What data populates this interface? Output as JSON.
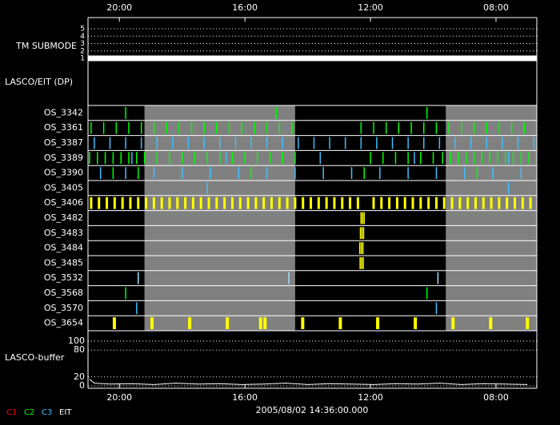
{
  "chart_data": {
    "type": "timeline",
    "xlim": [
      21,
      6.7
    ],
    "xticks": [
      {
        "value": 20,
        "label": "20:00"
      },
      {
        "value": 16,
        "label": "16:00"
      },
      {
        "value": 12,
        "label": "12:00"
      },
      {
        "value": 8,
        "label": "08:00"
      }
    ],
    "tm_submode": {
      "label": "TM SUBMODE",
      "ylim": [
        1,
        5
      ],
      "yticks": [
        1,
        2,
        3,
        4,
        5
      ],
      "x": [
        21,
        6.7
      ],
      "values": [
        1,
        1
      ],
      "color": "#ffffff"
    },
    "lasco_eit": {
      "label": "LASCO/EIT (DP)",
      "shaded": [
        [
          19.2,
          14.4
        ],
        [
          9.6,
          6.7
        ]
      ],
      "shade_color": "#808080",
      "rows": [
        {
          "label": "OS_3342",
          "series": [
            {
              "color": "#00ff00",
              "x": [
                19.8,
                15.0,
                10.2
              ]
            }
          ]
        },
        {
          "label": "OS_3361",
          "series": [
            {
              "color": "#00ff00",
              "x": [
                20.9,
                20.5,
                20.1,
                19.7,
                19.3,
                18.9,
                18.5,
                18.1,
                17.7,
                17.3,
                16.9,
                16.5,
                16.1,
                15.7,
                15.3,
                14.9,
                14.5,
                12.3,
                11.9,
                11.5,
                11.1,
                10.7,
                10.3,
                9.9,
                9.5,
                9.1,
                8.7,
                8.3,
                7.9,
                7.5,
                7.1
              ]
            }
          ]
        },
        {
          "label": "OS_3387",
          "series": [
            {
              "color": "#40c0ff",
              "x": [
                20.8,
                20.3,
                19.8,
                19.3,
                18.8,
                18.3,
                17.8,
                17.3,
                16.8,
                16.3,
                15.8,
                15.3,
                14.8,
                14.3,
                13.8,
                13.3,
                12.8,
                12.3,
                11.8,
                11.3,
                10.8,
                10.3,
                9.8,
                9.3,
                8.8,
                8.3,
                7.8,
                7.3,
                6.8
              ]
            }
          ]
        },
        {
          "label": "OS_3389",
          "series": [
            {
              "color": "#00ff00",
              "x": [
                20.95,
                20.7,
                20.45,
                20.2,
                19.95,
                19.7,
                19.45,
                19.2,
                18.8,
                18.4,
                18.0,
                17.6,
                17.2,
                16.8,
                16.4,
                16.0,
                15.6,
                15.2,
                14.8,
                14.4,
                12.0,
                11.6,
                11.2,
                10.8,
                10.4,
                10.0,
                9.7,
                9.45,
                9.2,
                8.95,
                8.7,
                8.45,
                8.2,
                7.95,
                7.7,
                7.45,
                7.2,
                6.95
              ]
            },
            {
              "color": "#40c0ff",
              "x": [
                19.6,
                16.6,
                13.6,
                10.6,
                7.6
              ]
            }
          ]
        },
        {
          "label": "OS_3390",
          "series": [
            {
              "color": "#40c0ff",
              "x": [
                20.6,
                19.8,
                18.9,
                18.0,
                17.1,
                16.2,
                15.3,
                14.4,
                13.5,
                12.6,
                11.7,
                10.8,
                9.9,
                9.0,
                8.1,
                7.2
              ]
            },
            {
              "color": "#00ff00",
              "x": [
                20.2,
                19.4,
                15.8,
                12.2,
                8.6
              ]
            }
          ]
        },
        {
          "label": "OS_3405",
          "series": [
            {
              "color": "#40c0ff",
              "x": [
                17.2,
                7.6
              ]
            }
          ]
        },
        {
          "label": "OS_3406",
          "series": [
            {
              "color": "#ffff00",
              "x": [
                20.9,
                20.65,
                20.4,
                20.15,
                19.9,
                19.65,
                19.4,
                19.15,
                18.9,
                18.65,
                18.4,
                18.15,
                17.9,
                17.65,
                17.4,
                17.15,
                16.9,
                16.65,
                16.4,
                16.15,
                15.9,
                15.65,
                15.4,
                15.15,
                14.9,
                14.65,
                14.4,
                14.15,
                13.9,
                13.65,
                13.4,
                13.15,
                12.9,
                12.65,
                12.4,
                11.9,
                11.65,
                11.4,
                11.15,
                10.9,
                10.65,
                10.4,
                10.15,
                9.9,
                9.65,
                9.4,
                9.15,
                8.9,
                8.65,
                8.4,
                8.15,
                7.9,
                7.65,
                7.4,
                7.15,
                6.9
              ]
            }
          ]
        },
        {
          "label": "OS_3482",
          "series": [
            {
              "color": "#ffff00",
              "x": [
                12.3,
                12.25,
                12.2
              ]
            }
          ]
        },
        {
          "label": "OS_3483",
          "series": [
            {
              "color": "#ffff00",
              "x": [
                12.32,
                12.27,
                12.22
              ]
            }
          ]
        },
        {
          "label": "OS_3484",
          "series": [
            {
              "color": "#ffff00",
              "x": [
                12.34,
                12.29,
                12.24
              ]
            }
          ]
        },
        {
          "label": "OS_3485",
          "series": [
            {
              "color": "#ffff00",
              "x": [
                12.33,
                12.28,
                12.23
              ]
            }
          ]
        },
        {
          "label": "OS_3532",
          "series": [
            {
              "color": "#a0e0ff",
              "x": [
                19.4,
                14.6,
                9.85
              ]
            }
          ]
        },
        {
          "label": "OS_3568",
          "series": [
            {
              "color": "#00ff00",
              "x": [
                19.8,
                10.2
              ]
            }
          ]
        },
        {
          "label": "OS_3570",
          "series": [
            {
              "color": "#40c0ff",
              "x": [
                19.45,
                9.9
              ]
            }
          ]
        },
        {
          "label": "OS_3654",
          "series": [
            {
              "color": "#ffff00",
              "x": [
                20.16,
                18.96,
                17.76,
                16.56,
                15.5,
                15.36,
                14.16,
                12.96,
                11.77,
                10.57,
                9.37,
                8.17,
                7.0
              ]
            }
          ]
        }
      ]
    },
    "buffer": {
      "label": "LASCO-buffer",
      "ylim": [
        0,
        100
      ],
      "yticks": [
        0,
        20,
        80,
        100
      ],
      "color": "#ffffff",
      "x": [
        20.95,
        20.8,
        20.3,
        19.6,
        18.9,
        18.2,
        17.5,
        16.8,
        16.1,
        15.4,
        14.7,
        14.0,
        13.3,
        12.6,
        11.9,
        11.2,
        10.5,
        9.8,
        9.1,
        8.4,
        7.7,
        7.0
      ],
      "values": [
        15,
        6,
        4,
        5,
        3,
        6,
        4,
        5,
        3,
        4,
        6,
        3,
        5,
        4,
        3,
        5,
        4,
        6,
        3,
        5,
        4,
        3
      ]
    },
    "timestamp": "2005/08/02 14:36:00.000",
    "legend": [
      {
        "name": "C1",
        "color": "#ff0000"
      },
      {
        "name": "C2",
        "color": "#00ff00"
      },
      {
        "name": "C3",
        "color": "#40c0ff"
      },
      {
        "name": "EIT",
        "color": "#ffffff"
      }
    ]
  }
}
